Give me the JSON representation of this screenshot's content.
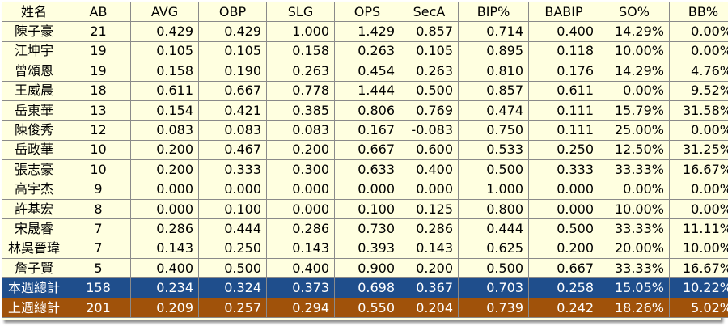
{
  "table": {
    "headers": [
      "姓名",
      "AB",
      "AVG",
      "OBP",
      "SLG",
      "OPS",
      "SecA",
      "BIP%",
      "BABIP",
      "SO%",
      "BB%"
    ],
    "rows": [
      [
        "陳子豪",
        "21",
        "0.429",
        "0.429",
        "1.000",
        "1.429",
        "0.857",
        "0.714",
        "0.400",
        "14.29%",
        "0.00%"
      ],
      [
        "江坤宇",
        "19",
        "0.105",
        "0.105",
        "0.158",
        "0.263",
        "0.105",
        "0.895",
        "0.118",
        "10.00%",
        "0.00%"
      ],
      [
        "曾頌恩",
        "19",
        "0.158",
        "0.190",
        "0.263",
        "0.454",
        "0.263",
        "0.810",
        "0.176",
        "14.29%",
        "4.76%"
      ],
      [
        "王威晨",
        "18",
        "0.611",
        "0.667",
        "0.778",
        "1.444",
        "0.500",
        "0.857",
        "0.611",
        "0.00%",
        "9.52%"
      ],
      [
        "岳東華",
        "13",
        "0.154",
        "0.421",
        "0.385",
        "0.806",
        "0.769",
        "0.474",
        "0.111",
        "15.79%",
        "31.58%"
      ],
      [
        "陳俊秀",
        "12",
        "0.083",
        "0.083",
        "0.083",
        "0.167",
        "-0.083",
        "0.750",
        "0.111",
        "25.00%",
        "0.00%"
      ],
      [
        "岳政華",
        "10",
        "0.200",
        "0.467",
        "0.200",
        "0.667",
        "0.600",
        "0.533",
        "0.250",
        "12.50%",
        "31.25%"
      ],
      [
        "張志豪",
        "10",
        "0.200",
        "0.333",
        "0.300",
        "0.633",
        "0.400",
        "0.500",
        "0.333",
        "33.33%",
        "16.67%"
      ],
      [
        "高宇杰",
        "9",
        "0.000",
        "0.000",
        "0.000",
        "0.000",
        "0.000",
        "1.000",
        "0.000",
        "0.00%",
        "0.00%"
      ],
      [
        "許基宏",
        "8",
        "0.000",
        "0.100",
        "0.000",
        "0.100",
        "0.125",
        "0.800",
        "0.000",
        "10.00%",
        "0.00%"
      ],
      [
        "宋晟睿",
        "7",
        "0.286",
        "0.444",
        "0.286",
        "0.730",
        "0.286",
        "0.444",
        "0.500",
        "33.33%",
        "11.11%"
      ],
      [
        "林吳晉瑋",
        "7",
        "0.143",
        "0.250",
        "0.143",
        "0.393",
        "0.143",
        "0.625",
        "0.200",
        "20.00%",
        "10.00%"
      ],
      [
        "詹子賢",
        "5",
        "0.400",
        "0.500",
        "0.400",
        "0.900",
        "0.200",
        "0.500",
        "0.667",
        "33.33%",
        "16.67%"
      ]
    ],
    "totals": [
      [
        "本週總計",
        "158",
        "0.234",
        "0.324",
        "0.373",
        "0.698",
        "0.367",
        "0.703",
        "0.258",
        "15.05%",
        "10.22%"
      ],
      [
        "上週總計",
        "201",
        "0.209",
        "0.257",
        "0.294",
        "0.550",
        "0.204",
        "0.739",
        "0.242",
        "18.26%",
        "5.02%"
      ]
    ]
  },
  "colors": {
    "cell_background": "#ffffe0",
    "this_week_total": "#1f4e8c",
    "last_week_total": "#a0520a",
    "border": "#8a8a8a"
  }
}
